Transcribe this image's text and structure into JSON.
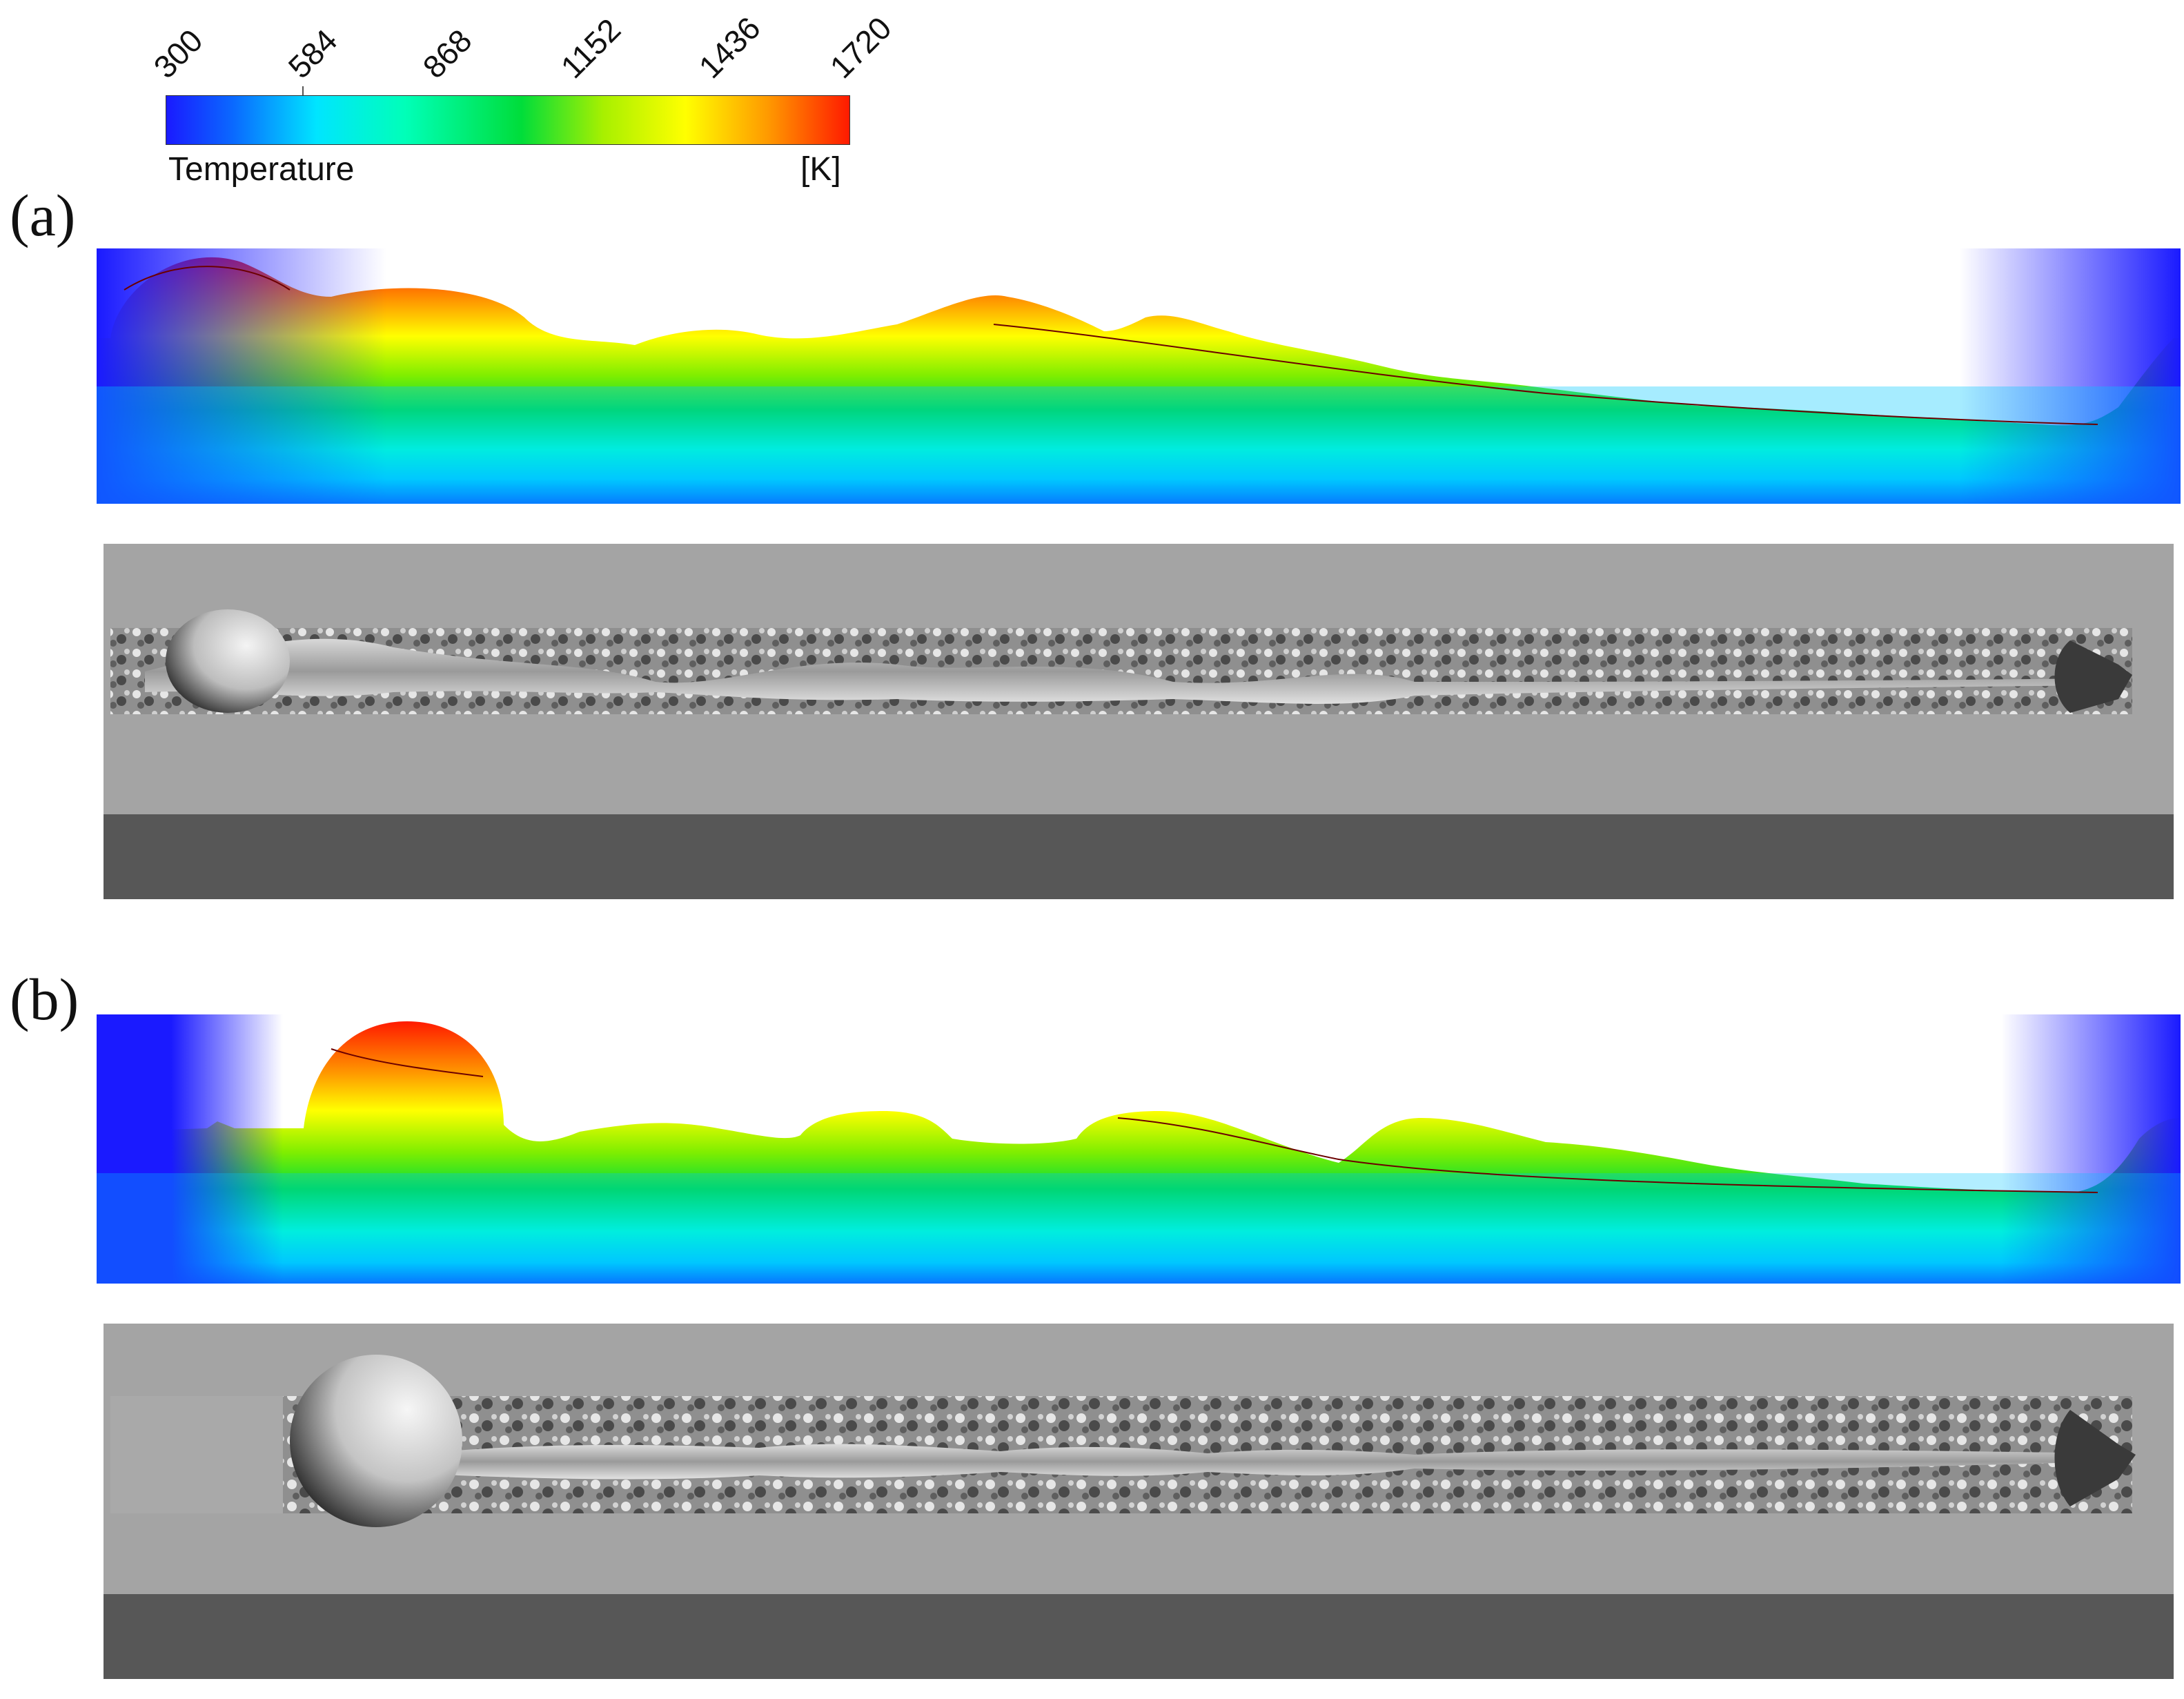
{
  "colorbar": {
    "ticks": [
      "300",
      "584",
      "868",
      "1152",
      "1436",
      "1720"
    ],
    "quantity": "Temperature",
    "unit": "[K]",
    "colors": [
      "#1a1aff",
      "#00e5ff",
      "#00dd3a",
      "#ffff00",
      "#ff9a00",
      "#ff1a00"
    ]
  },
  "panels": [
    {
      "label": "(a)"
    },
    {
      "label": "(b)"
    }
  ]
}
